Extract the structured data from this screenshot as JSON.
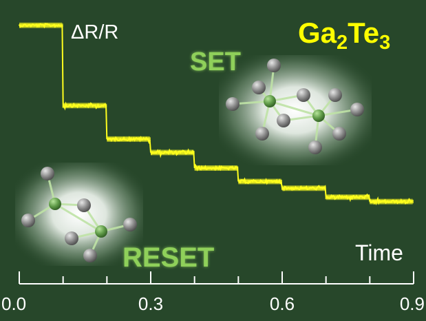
{
  "labels": {
    "y_quantity": "ΔR/R",
    "compound_prefix": "Ga",
    "compound_sub1": "2",
    "compound_mid": "Te",
    "compound_sub2": "3",
    "set": "SET",
    "reset": "RESET",
    "x_axis": "Time"
  },
  "colors": {
    "background": "#27472a",
    "trace": "#ffff1e",
    "title": "#ffff00",
    "axis": "#ffffff",
    "state_label": "#8fd05a",
    "ga_atom": "#6aa64e",
    "te_atom": "#9a9a9a"
  },
  "chart_data": {
    "type": "line",
    "title": "Ga2Te3",
    "xlabel": "Time",
    "ylabel": "ΔR/R",
    "xlim": [
      0.0,
      0.9
    ],
    "x_ticks": [
      0.0,
      0.1,
      0.2,
      0.3,
      0.4,
      0.5,
      0.6,
      0.7,
      0.8,
      0.9
    ],
    "x_tick_labels": [
      "0.0",
      "0.3",
      "0.6",
      "0.9"
    ],
    "ylim": [
      0,
      1
    ],
    "grid": false,
    "legend": "none",
    "series": [
      {
        "noise_note": null,
        "segments": [
          {
            "x_start": 0.0,
            "x_end": 0.1,
            "y": 0.93
          },
          {
            "x_start": 0.1,
            "x_end": 0.2,
            "y": 0.57
          },
          {
            "x_start": 0.2,
            "x_end": 0.3,
            "y": 0.42
          },
          {
            "x_start": 0.3,
            "x_end": 0.4,
            "y": 0.36
          },
          {
            "x_start": 0.4,
            "x_end": 0.5,
            "y": 0.29
          },
          {
            "x_start": 0.5,
            "x_end": 0.6,
            "y": 0.23
          },
          {
            "x_start": 0.6,
            "x_end": 0.7,
            "y": 0.2
          },
          {
            "x_start": 0.7,
            "x_end": 0.8,
            "y": 0.16
          },
          {
            "x_start": 0.8,
            "x_end": 0.9,
            "y": 0.14
          }
        ]
      }
    ]
  }
}
